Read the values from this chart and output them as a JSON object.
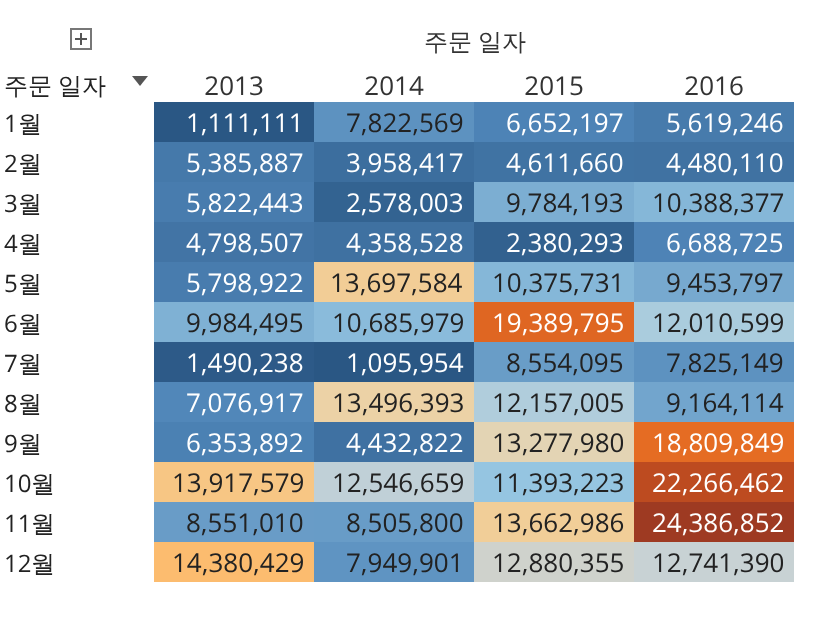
{
  "chart_data": {
    "type": "heatmap",
    "xlabel": "주문 일자",
    "ylabel": "주문 일자",
    "categories": [
      "2013",
      "2014",
      "2015",
      "2016"
    ],
    "y_categories": [
      "1월",
      "2월",
      "3월",
      "4월",
      "5월",
      "6월",
      "7월",
      "8월",
      "9월",
      "10월",
      "11월",
      "12월"
    ],
    "cells": [
      [
        1111111,
        7822569,
        6652197,
        5619246
      ],
      [
        5385887,
        3958417,
        4611660,
        4480110
      ],
      [
        5822443,
        2578003,
        9784193,
        10388377
      ],
      [
        4798507,
        4358528,
        2380293,
        6688725
      ],
      [
        5798922,
        13697584,
        10375731,
        9453797
      ],
      [
        9984495,
        10685979,
        19389795,
        12010599
      ],
      [
        1490238,
        1095954,
        8554095,
        7825149
      ],
      [
        7076917,
        13496393,
        12157005,
        9164114
      ],
      [
        6353892,
        4432822,
        13277980,
        18809849
      ],
      [
        13917579,
        12546659,
        11393223,
        22266462
      ],
      [
        8551010,
        8505800,
        13662986,
        24386852
      ],
      [
        14380429,
        7949901,
        12880355,
        12741390
      ]
    ],
    "cell_labels": [
      [
        "1,111,111",
        "7,822,569",
        "6,652,197",
        "5,619,246"
      ],
      [
        "5,385,887",
        "3,958,417",
        "4,611,660",
        "4,480,110"
      ],
      [
        "5,822,443",
        "2,578,003",
        "9,784,193",
        "10,388,377"
      ],
      [
        "4,798,507",
        "4,358,528",
        "2,380,293",
        "6,688,725"
      ],
      [
        "5,798,922",
        "13,697,584",
        "10,375,731",
        "9,453,797"
      ],
      [
        "9,984,495",
        "10,685,979",
        "19,389,795",
        "12,010,599"
      ],
      [
        "1,490,238",
        "1,095,954",
        "8,554,095",
        "7,825,149"
      ],
      [
        "7,076,917",
        "13,496,393",
        "12,157,005",
        "9,164,114"
      ],
      [
        "6,353,892",
        "4,432,822",
        "13,277,980",
        "18,809,849"
      ],
      [
        "13,917,579",
        "12,546,659",
        "11,393,223",
        "22,266,462"
      ],
      [
        "8,551,010",
        "8,505,800",
        "13,662,986",
        "24,386,852"
      ],
      [
        "14,380,429",
        "7,949,901",
        "12,880,355",
        "12,741,390"
      ]
    ]
  }
}
